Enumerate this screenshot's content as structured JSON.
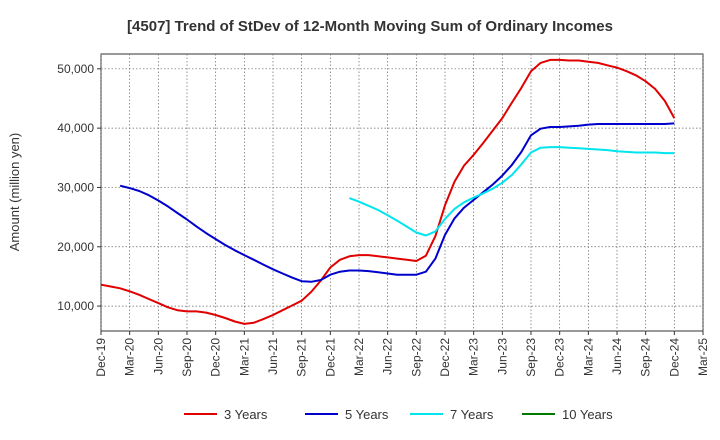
{
  "chart_data": {
    "type": "line",
    "title": "[4507]  Trend of StDev of 12-Month Moving Sum of Ordinary Incomes",
    "ylabel": "Amount (million yen)",
    "xlabel": "",
    "ylim": [
      5800,
      52500
    ],
    "yticks": [
      10000,
      20000,
      30000,
      40000,
      50000
    ],
    "ytick_labels": [
      "10,000",
      "20,000",
      "30,000",
      "40,000",
      "50,000"
    ],
    "x_ticks": [
      "Dec-19",
      "Mar-20",
      "Jun-20",
      "Sep-20",
      "Dec-20",
      "Mar-21",
      "Jun-21",
      "Sep-21",
      "Dec-21",
      "Mar-22",
      "Jun-22",
      "Sep-22",
      "Dec-22",
      "Mar-23",
      "Jun-23",
      "Sep-23",
      "Dec-23",
      "Mar-24",
      "Jun-24",
      "Sep-24",
      "Dec-24",
      "Mar-25"
    ],
    "grid": true,
    "legend_position": "bottom",
    "series": [
      {
        "name": "3 Years",
        "color": "#e00000",
        "points": [
          [
            "Dec-19",
            13600
          ],
          [
            "Jan-20",
            13300
          ],
          [
            "Feb-20",
            13000
          ],
          [
            "Mar-20",
            12500
          ],
          [
            "Apr-20",
            11900
          ],
          [
            "May-20",
            11200
          ],
          [
            "Jun-20",
            10500
          ],
          [
            "Jul-20",
            9800
          ],
          [
            "Aug-20",
            9300
          ],
          [
            "Sep-20",
            9100
          ],
          [
            "Oct-20",
            9100
          ],
          [
            "Nov-20",
            8900
          ],
          [
            "Dec-20",
            8500
          ],
          [
            "Jan-21",
            8000
          ],
          [
            "Feb-21",
            7400
          ],
          [
            "Mar-21",
            7000
          ],
          [
            "Apr-21",
            7200
          ],
          [
            "May-21",
            7800
          ],
          [
            "Jun-21",
            8500
          ],
          [
            "Jul-21",
            9300
          ],
          [
            "Aug-21",
            10100
          ],
          [
            "Sep-21",
            10900
          ],
          [
            "Oct-21",
            12400
          ],
          [
            "Nov-21",
            14300
          ],
          [
            "Dec-21",
            16500
          ],
          [
            "Jan-22",
            17800
          ],
          [
            "Feb-22",
            18400
          ],
          [
            "Mar-22",
            18600
          ],
          [
            "Apr-22",
            18600
          ],
          [
            "May-22",
            18400
          ],
          [
            "Jun-22",
            18200
          ],
          [
            "Jul-22",
            18000
          ],
          [
            "Aug-22",
            17800
          ],
          [
            "Sep-22",
            17600
          ],
          [
            "Oct-22",
            18500
          ],
          [
            "Nov-22",
            21800
          ],
          [
            "Dec-22",
            27000
          ],
          [
            "Jan-23",
            31000
          ],
          [
            "Feb-23",
            33700
          ],
          [
            "Mar-23",
            35500
          ],
          [
            "Apr-23",
            37500
          ],
          [
            "May-23",
            39600
          ],
          [
            "Jun-23",
            41700
          ],
          [
            "Jul-23",
            44300
          ],
          [
            "Aug-23",
            46800
          ],
          [
            "Sep-23",
            49600
          ],
          [
            "Oct-23",
            51000
          ],
          [
            "Nov-23",
            51500
          ],
          [
            "Dec-23",
            51500
          ],
          [
            "Jan-24",
            51400
          ],
          [
            "Feb-24",
            51400
          ],
          [
            "Mar-24",
            51200
          ],
          [
            "Apr-24",
            51000
          ],
          [
            "May-24",
            50600
          ],
          [
            "Jun-24",
            50200
          ],
          [
            "Jul-24",
            49600
          ],
          [
            "Aug-24",
            48900
          ],
          [
            "Sep-24",
            47900
          ],
          [
            "Oct-24",
            46600
          ],
          [
            "Nov-24",
            44600
          ],
          [
            "Dec-24",
            41700
          ]
        ]
      },
      {
        "name": "5 Years",
        "color": "#0000cc",
        "points": [
          [
            "Feb-20",
            30300
          ],
          [
            "Mar-20",
            29900
          ],
          [
            "Apr-20",
            29400
          ],
          [
            "May-20",
            28700
          ],
          [
            "Jun-20",
            27800
          ],
          [
            "Jul-20",
            26800
          ],
          [
            "Aug-20",
            25700
          ],
          [
            "Sep-20",
            24600
          ],
          [
            "Oct-20",
            23400
          ],
          [
            "Nov-20",
            22300
          ],
          [
            "Dec-20",
            21300
          ],
          [
            "Jan-21",
            20300
          ],
          [
            "Feb-21",
            19400
          ],
          [
            "Mar-21",
            18600
          ],
          [
            "Apr-21",
            17800
          ],
          [
            "May-21",
            17000
          ],
          [
            "Jun-21",
            16200
          ],
          [
            "Jul-21",
            15500
          ],
          [
            "Aug-21",
            14800
          ],
          [
            "Sep-21",
            14200
          ],
          [
            "Oct-21",
            14100
          ],
          [
            "Nov-21",
            14400
          ],
          [
            "Dec-21",
            15300
          ],
          [
            "Jan-22",
            15800
          ],
          [
            "Feb-22",
            16000
          ],
          [
            "Mar-22",
            16000
          ],
          [
            "Apr-22",
            15900
          ],
          [
            "May-22",
            15700
          ],
          [
            "Jun-22",
            15500
          ],
          [
            "Jul-22",
            15300
          ],
          [
            "Aug-22",
            15300
          ],
          [
            "Sep-22",
            15300
          ],
          [
            "Oct-22",
            15800
          ],
          [
            "Nov-22",
            18000
          ],
          [
            "Dec-22",
            22000
          ],
          [
            "Jan-23",
            24800
          ],
          [
            "Feb-23",
            26600
          ],
          [
            "Mar-23",
            27900
          ],
          [
            "Apr-23",
            29200
          ],
          [
            "May-23",
            30500
          ],
          [
            "Jun-23",
            32000
          ],
          [
            "Jul-23",
            33800
          ],
          [
            "Aug-23",
            36000
          ],
          [
            "Sep-23",
            38800
          ],
          [
            "Oct-23",
            39900
          ],
          [
            "Nov-23",
            40200
          ],
          [
            "Dec-23",
            40200
          ],
          [
            "Jan-24",
            40300
          ],
          [
            "Feb-24",
            40400
          ],
          [
            "Mar-24",
            40600
          ],
          [
            "Apr-24",
            40700
          ],
          [
            "May-24",
            40700
          ],
          [
            "Jun-24",
            40700
          ],
          [
            "Jul-24",
            40700
          ],
          [
            "Aug-24",
            40700
          ],
          [
            "Sep-24",
            40700
          ],
          [
            "Oct-24",
            40700
          ],
          [
            "Nov-24",
            40700
          ],
          [
            "Dec-24",
            40800
          ]
        ]
      },
      {
        "name": "7 Years",
        "color": "#00e5ee",
        "points": [
          [
            "Feb-22",
            28200
          ],
          [
            "Mar-22",
            27600
          ],
          [
            "Apr-22",
            26900
          ],
          [
            "May-22",
            26200
          ],
          [
            "Jun-22",
            25300
          ],
          [
            "Jul-22",
            24400
          ],
          [
            "Aug-22",
            23400
          ],
          [
            "Sep-22",
            22400
          ],
          [
            "Oct-22",
            21900
          ],
          [
            "Nov-22",
            22600
          ],
          [
            "Dec-22",
            24700
          ],
          [
            "Jan-23",
            26400
          ],
          [
            "Feb-23",
            27500
          ],
          [
            "Mar-23",
            28300
          ],
          [
            "Apr-23",
            29000
          ],
          [
            "May-23",
            29800
          ],
          [
            "Jun-23",
            30800
          ],
          [
            "Jul-23",
            32100
          ],
          [
            "Aug-23",
            33900
          ],
          [
            "Sep-23",
            35900
          ],
          [
            "Oct-23",
            36700
          ],
          [
            "Nov-23",
            36800
          ],
          [
            "Dec-23",
            36800
          ],
          [
            "Jan-24",
            36700
          ],
          [
            "Feb-24",
            36600
          ],
          [
            "Mar-24",
            36500
          ],
          [
            "Apr-24",
            36400
          ],
          [
            "May-24",
            36300
          ],
          [
            "Jun-24",
            36100
          ],
          [
            "Jul-24",
            36000
          ],
          [
            "Aug-24",
            35900
          ],
          [
            "Sep-24",
            35900
          ],
          [
            "Oct-24",
            35900
          ],
          [
            "Nov-24",
            35800
          ],
          [
            "Dec-24",
            35800
          ]
        ]
      },
      {
        "name": "10 Years",
        "color": "#007a00",
        "points": []
      }
    ]
  }
}
